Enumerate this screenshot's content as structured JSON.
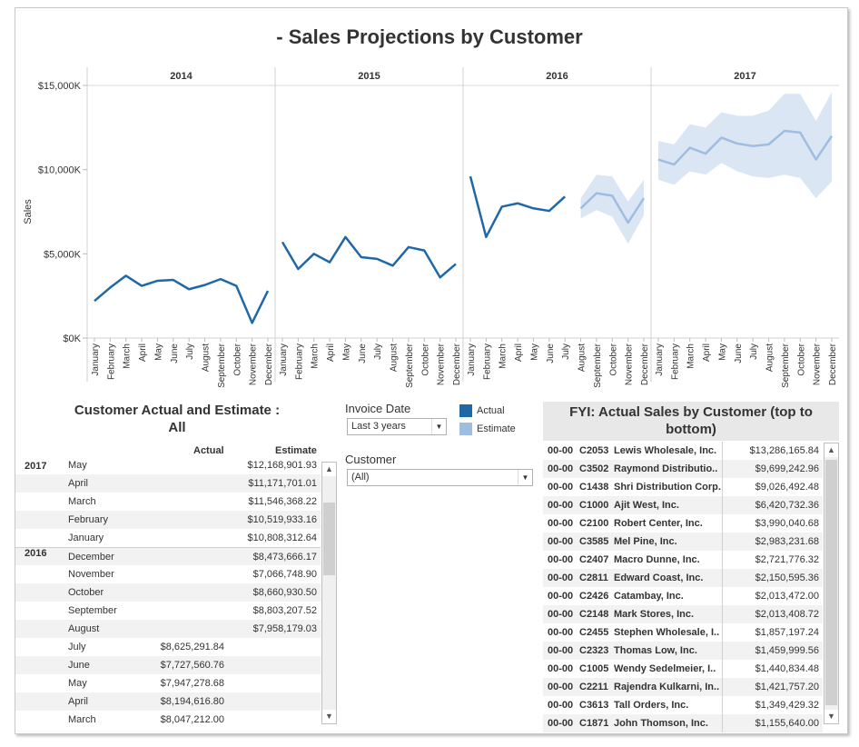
{
  "title": "- Sales Projections by Customer",
  "chart_data": {
    "type": "line",
    "title": "- Sales Projections by Customer",
    "ylabel": "Sales",
    "xlabel": "",
    "ylim": [
      0,
      15000000
    ],
    "yticks": [
      "$0K",
      "$5,000K",
      "$10,000K",
      "$15,000K"
    ],
    "ytick_values": [
      0,
      5000000,
      10000000,
      15000000
    ],
    "years": [
      "2014",
      "2015",
      "2016",
      "2017"
    ],
    "months": [
      "January",
      "February",
      "March",
      "April",
      "May",
      "June",
      "July",
      "August",
      "September",
      "October",
      "November",
      "December"
    ],
    "legend": [
      "Actual",
      "Estimate"
    ],
    "colors": {
      "actual": "#1f68a8",
      "estimate": "#9fbde0",
      "band": "#dbe6f5"
    },
    "series": [
      {
        "name": "Actual",
        "year": "2014",
        "values": [
          2200000,
          3000000,
          3700000,
          3100000,
          3400000,
          3450000,
          2900000,
          3150000,
          3500000,
          3100000,
          900000,
          2800000
        ]
      },
      {
        "name": "Actual",
        "year": "2015",
        "values": [
          5700000,
          4100000,
          5000000,
          4500000,
          6000000,
          4800000,
          4700000,
          4300000,
          5400000,
          5200000,
          3600000,
          4400000
        ]
      },
      {
        "name": "Actual",
        "year": "2016",
        "values": [
          9600000,
          6000000,
          7800000,
          8000000,
          7700000,
          7550000,
          8400000,
          null,
          null,
          null,
          null,
          null
        ]
      },
      {
        "name": "Estimate",
        "year": "2016",
        "values": [
          null,
          null,
          null,
          null,
          null,
          null,
          null,
          7700000,
          8600000,
          8450000,
          6850000,
          8300000
        ],
        "lower": [
          null,
          null,
          null,
          null,
          null,
          null,
          null,
          7100000,
          7600000,
          7200000,
          5600000,
          7300000
        ],
        "upper": [
          null,
          null,
          null,
          null,
          null,
          null,
          null,
          8300000,
          9700000,
          9600000,
          8100000,
          9400000
        ]
      },
      {
        "name": "Estimate",
        "year": "2017",
        "values": [
          10600000,
          10300000,
          11300000,
          10950000,
          11900000,
          11550000,
          11400000,
          11500000,
          12300000,
          12200000,
          10600000,
          12000000
        ],
        "lower": [
          9400000,
          9100000,
          9900000,
          9700000,
          10400000,
          9900000,
          9600000,
          9500000,
          9700000,
          9500000,
          8300000,
          9300000
        ],
        "upper": [
          11700000,
          11500000,
          12700000,
          12500000,
          13400000,
          13200000,
          13200000,
          13500000,
          14500000,
          14500000,
          12900000,
          14600000
        ]
      }
    ]
  },
  "left_table": {
    "title": "Customer Actual and Estimate :",
    "subtitle": "All",
    "col_actual": "Actual",
    "col_estimate": "Estimate",
    "year_2017": "2017",
    "year_2016": "2016",
    "rows": [
      {
        "month": "May",
        "actual": "",
        "estimate": "$12,168,901.93"
      },
      {
        "month": "April",
        "actual": "",
        "estimate": "$11,171,701.01"
      },
      {
        "month": "March",
        "actual": "",
        "estimate": "$11,546,368.22"
      },
      {
        "month": "February",
        "actual": "",
        "estimate": "$10,519,933.16"
      },
      {
        "month": "January",
        "actual": "",
        "estimate": "$10,808,312.64"
      },
      {
        "month": "December",
        "actual": "",
        "estimate": "$8,473,666.17"
      },
      {
        "month": "November",
        "actual": "",
        "estimate": "$7,066,748.90"
      },
      {
        "month": "October",
        "actual": "",
        "estimate": "$8,660,930.50"
      },
      {
        "month": "September",
        "actual": "",
        "estimate": "$8,803,207.52"
      },
      {
        "month": "August",
        "actual": "",
        "estimate": "$7,958,179.03"
      },
      {
        "month": "July",
        "actual": "$8,625,291.84",
        "estimate": ""
      },
      {
        "month": "June",
        "actual": "$7,727,560.76",
        "estimate": ""
      },
      {
        "month": "May",
        "actual": "$7,947,278.68",
        "estimate": ""
      },
      {
        "month": "April",
        "actual": "$8,194,616.80",
        "estimate": ""
      },
      {
        "month": "March",
        "actual": "$8,047,212.00",
        "estimate": ""
      }
    ]
  },
  "filters": {
    "invoice_label": "Invoice Date",
    "invoice_value": "Last 3 years",
    "customer_label": "Customer",
    "customer_value": "(All)"
  },
  "legend": {
    "actual": "Actual",
    "estimate": "Estimate"
  },
  "fyi": {
    "title": "FYI: Actual Sales by Customer (top to bottom)",
    "rows": [
      {
        "prefix": "00-00",
        "code": "C2053",
        "name": "Lewis Wholesale, Inc.",
        "value": "$13,286,165.84"
      },
      {
        "prefix": "00-00",
        "code": "C3502",
        "name": "Raymond Distributio..",
        "value": "$9,699,242.96"
      },
      {
        "prefix": "00-00",
        "code": "C1438",
        "name": "Shri Distribution Corp.",
        "value": "$9,026,492.48"
      },
      {
        "prefix": "00-00",
        "code": "C1000",
        "name": "Ajit West, Inc.",
        "value": "$6,420,732.36"
      },
      {
        "prefix": "00-00",
        "code": "C2100",
        "name": "Robert Center, Inc.",
        "value": "$3,990,040.68"
      },
      {
        "prefix": "00-00",
        "code": "C3585",
        "name": "Mel Pine, Inc.",
        "value": "$2,983,231.68"
      },
      {
        "prefix": "00-00",
        "code": "C2407",
        "name": "Macro Dunne, Inc.",
        "value": "$2,721,776.32"
      },
      {
        "prefix": "00-00",
        "code": "C2811",
        "name": "Edward Coast, Inc.",
        "value": "$2,150,595.36"
      },
      {
        "prefix": "00-00",
        "code": "C2426",
        "name": "Catambay, Inc.",
        "value": "$2,013,472.00"
      },
      {
        "prefix": "00-00",
        "code": "C2148",
        "name": "Mark Stores, Inc.",
        "value": "$2,013,408.72"
      },
      {
        "prefix": "00-00",
        "code": "C2455",
        "name": "Stephen Wholesale, I..",
        "value": "$1,857,197.24"
      },
      {
        "prefix": "00-00",
        "code": "C2323",
        "name": "Thomas Low, Inc.",
        "value": "$1,459,999.56"
      },
      {
        "prefix": "00-00",
        "code": "C1005",
        "name": "Wendy Sedelmeier, I..",
        "value": "$1,440,834.48"
      },
      {
        "prefix": "00-00",
        "code": "C2211",
        "name": "Rajendra Kulkarni, In..",
        "value": "$1,421,757.20"
      },
      {
        "prefix": "00-00",
        "code": "C3613",
        "name": "Tall Orders, Inc.",
        "value": "$1,349,429.32"
      },
      {
        "prefix": "00-00",
        "code": "C1871",
        "name": "John Thomson, Inc.",
        "value": "$1,155,640.00"
      }
    ]
  }
}
